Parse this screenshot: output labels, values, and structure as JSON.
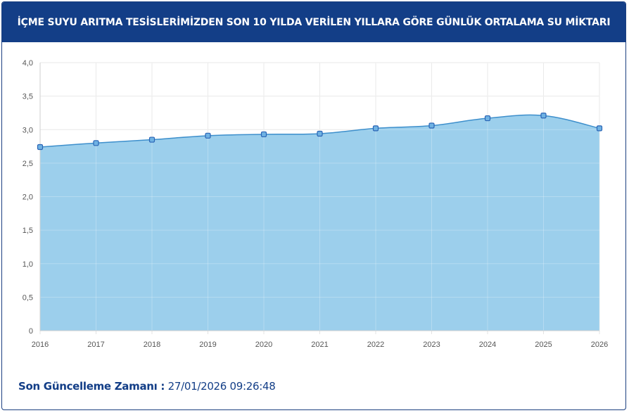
{
  "header": {
    "title": "İÇME SUYU ARITMA TESİSLERİMİZDEN SON 10 YILDA VERİLEN YILLARA GÖRE GÜNLÜK ORTALAMA SU MİKTARI"
  },
  "footer": {
    "label": "Son Güncelleme Zamanı :",
    "timestamp": "27/01/2026 09:26:48"
  },
  "colors": {
    "header_bg": "#133e87",
    "area_fill": "#9ccfec",
    "line": "#3d8fcc",
    "marker": "#2a64b5"
  },
  "chart_data": {
    "type": "area",
    "title": "",
    "xlabel": "",
    "ylabel": "",
    "x": [
      "2016",
      "2017",
      "2018",
      "2019",
      "2020",
      "2021",
      "2022",
      "2023",
      "2024",
      "2025",
      "2026"
    ],
    "series": [
      {
        "values": [
          2.74,
          2.8,
          2.85,
          2.91,
          2.93,
          2.94,
          3.02,
          3.06,
          3.17,
          3.21,
          3.02
        ]
      }
    ],
    "ylim": [
      0,
      4
    ],
    "y_ticks": [
      "0",
      "0,5",
      "1,0",
      "1,5",
      "2,0",
      "2,5",
      "3,0",
      "3,5",
      "4,0"
    ],
    "grid": true,
    "smooth": true,
    "legend": "none"
  }
}
